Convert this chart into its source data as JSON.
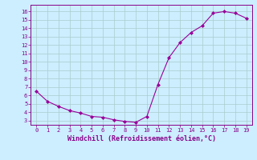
{
  "x": [
    0,
    1,
    2,
    3,
    4,
    5,
    6,
    7,
    8,
    9,
    10,
    11,
    12,
    13,
    14,
    15,
    16,
    17,
    18,
    19
  ],
  "y": [
    6.5,
    5.3,
    4.7,
    4.2,
    3.9,
    3.5,
    3.4,
    3.1,
    2.9,
    2.8,
    3.5,
    7.3,
    10.5,
    12.3,
    13.5,
    14.3,
    15.8,
    16.0,
    15.8,
    15.2
  ],
  "line_color": "#990099",
  "marker": "D",
  "marker_size": 2,
  "bg_color": "#cceeff",
  "grid_color": "#aacccc",
  "xlabel": "Windchill (Refroidissement éolien,°C)",
  "xlabel_color": "#880088",
  "tick_color": "#880088",
  "ylim": [
    2.5,
    16.8
  ],
  "xlim": [
    -0.5,
    19.5
  ],
  "yticks": [
    3,
    4,
    5,
    6,
    7,
    8,
    9,
    10,
    11,
    12,
    13,
    14,
    15,
    16
  ],
  "xticks": [
    0,
    1,
    2,
    3,
    4,
    5,
    6,
    7,
    8,
    9,
    10,
    11,
    12,
    13,
    14,
    15,
    16,
    17,
    18,
    19
  ],
  "font_size_ticks": 5,
  "font_size_xlabel": 6,
  "linewidth": 0.8
}
